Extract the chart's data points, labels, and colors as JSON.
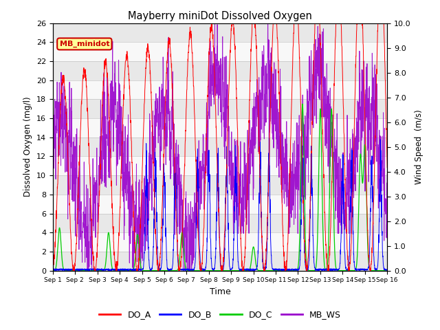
{
  "title": "Mayberry miniDot Dissolved Oxygen",
  "xlabel": "Time",
  "ylabel_left": "Dissolved Oxygen (mg/l)",
  "ylabel_right": "Wind Speed  (m/s)",
  "ylim_left": [
    0,
    26
  ],
  "ylim_right": [
    0,
    10
  ],
  "yticks_left": [
    0,
    2,
    4,
    6,
    8,
    10,
    12,
    14,
    16,
    18,
    20,
    22,
    24,
    26
  ],
  "yticks_right": [
    0.0,
    1.0,
    2.0,
    3.0,
    4.0,
    5.0,
    6.0,
    7.0,
    8.0,
    9.0,
    10.0
  ],
  "xtick_labels": [
    "Sep 1",
    "Sep 2",
    "Sep 3",
    "Sep 4",
    "Sep 5",
    "Sep 6",
    "Sep 7",
    "Sep 8",
    "Sep 9",
    "Sep 10",
    "Sep 11",
    "Sep 12",
    "Sep 13",
    "Sep 14",
    "Sep 15",
    "Sep 16"
  ],
  "colors": {
    "DO_A": "#ff0000",
    "DO_B": "#0000ff",
    "DO_C": "#00cc00",
    "MB_WS": "#9900cc"
  },
  "legend_label": "MB_minidot",
  "legend_box_facecolor": "#ffff99",
  "legend_box_edgecolor": "#cc0000",
  "band_colors": [
    "#e8e8e8",
    "#f8f8f8"
  ]
}
